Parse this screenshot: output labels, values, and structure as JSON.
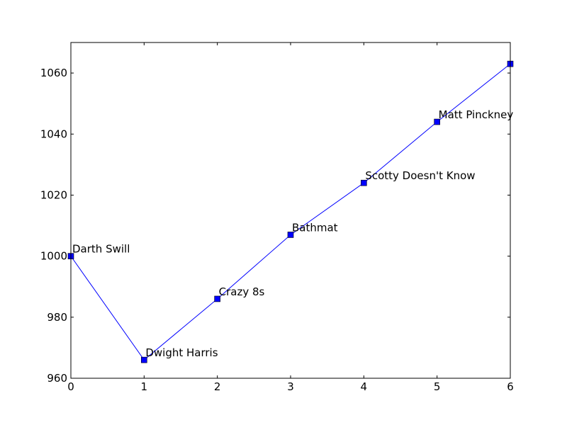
{
  "chart_data": {
    "type": "line",
    "title": "",
    "xlabel": "",
    "ylabel": "",
    "x": [
      0,
      1,
      2,
      3,
      4,
      5,
      6
    ],
    "xlim": [
      0,
      6
    ],
    "ylim": [
      960,
      1070
    ],
    "xticks": [
      0,
      1,
      2,
      3,
      4,
      5,
      6
    ],
    "yticks": [
      960,
      980,
      1000,
      1020,
      1040,
      1060
    ],
    "grid": false,
    "series": [
      {
        "values": [
          1000,
          966,
          986,
          1007,
          1024,
          1044,
          1063
        ],
        "color": "#0000ff",
        "marker": "square"
      }
    ],
    "annotations": [
      {
        "x": 0,
        "y": 1000,
        "text": "Darth Swill"
      },
      {
        "x": 1,
        "y": 966,
        "text": "Dwight Harris"
      },
      {
        "x": 2,
        "y": 986,
        "text": "Crazy 8s"
      },
      {
        "x": 3,
        "y": 1007,
        "text": "Bathmat"
      },
      {
        "x": 4,
        "y": 1024,
        "text": "Scotty Doesn't Know"
      },
      {
        "x": 5,
        "y": 1044,
        "text": "Matt Pinckney"
      }
    ]
  }
}
